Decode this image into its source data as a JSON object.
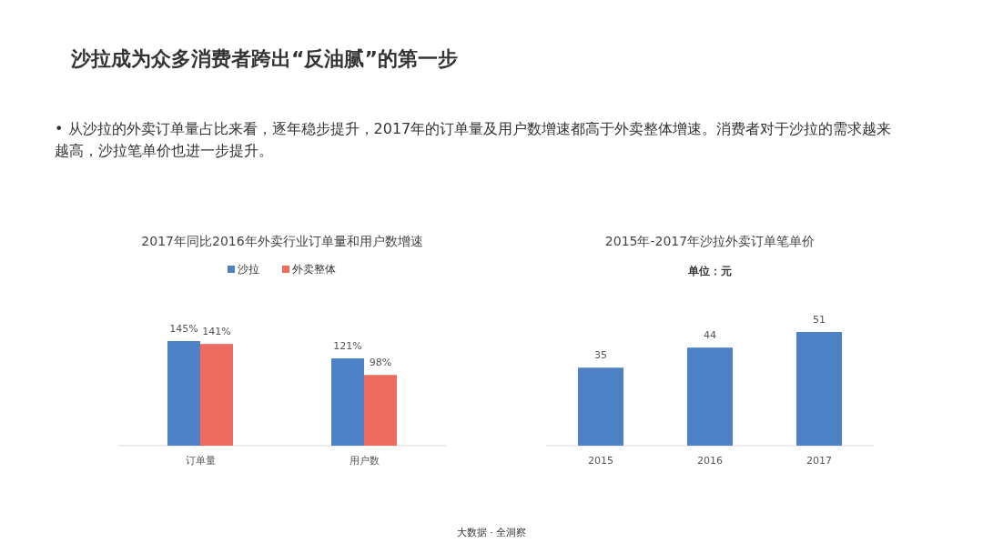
{
  "chart_data": [
    {
      "type": "bar",
      "title": "2017年同比2016年外卖行业订单量和用户数增速",
      "categories": [
        "订单量",
        "用户数"
      ],
      "series": [
        {
          "name": "沙拉",
          "color": "#4f81c7",
          "values": [
            145,
            121
          ],
          "value_labels": [
            "145%",
            "121%"
          ]
        },
        {
          "name": "外卖整体",
          "color": "#ec6a5e",
          "values": [
            141,
            98
          ],
          "value_labels": [
            "141%",
            "98%"
          ]
        }
      ],
      "legend": "top",
      "annotations": [
        "沙拉成为众多消费者跨出“反油腻”的第一步",
        "•  从沙拉的外卖订单量占比来看，逐年稳步提升，2017年的订单量及用户数增速都高于外卖整体增速。消费者对于沙拉的需求越来越高，沙拉笔单价也进一步提升。"
      ]
    },
    {
      "type": "bar",
      "title": "2015年-2017年沙拉外卖订单笔单价",
      "subtitle": "单位：元",
      "categories": [
        "2015",
        "2016",
        "2017"
      ],
      "values": [
        35,
        44,
        51
      ],
      "color": "#4f81c7",
      "data_labels": true,
      "annotations": [
        "大数据 · 全洞察"
      ]
    }
  ]
}
